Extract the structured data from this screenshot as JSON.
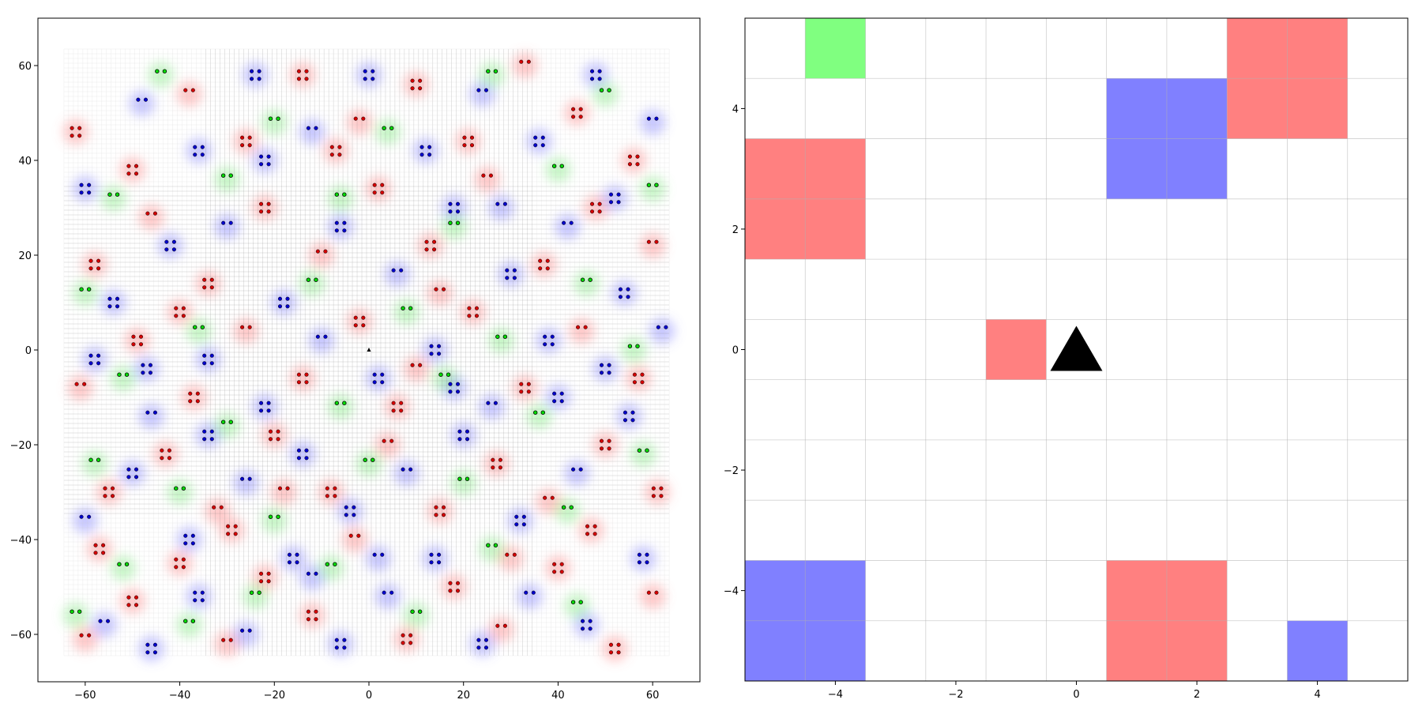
{
  "chart_data": [
    {
      "type": "scatter",
      "title": "",
      "xlabel": "",
      "ylabel": "",
      "xlim": [
        -70,
        70
      ],
      "ylim": [
        -70,
        70
      ],
      "data_extent": [
        -64.5,
        63.5
      ],
      "xticks": [
        -60,
        -40,
        -20,
        0,
        20,
        40,
        60
      ],
      "yticks": [
        -60,
        -40,
        -20,
        0,
        20,
        40,
        60
      ],
      "tick_labels_x": [
        "−60",
        "−40",
        "−20",
        "0",
        "20",
        "40",
        "60"
      ],
      "tick_labels_y": [
        "−60",
        "−40",
        "−20",
        "0",
        "20",
        "40",
        "60"
      ],
      "grid": true,
      "background": "density heatmap (red / green / blue) under a fine cell grid",
      "agent_marker": {
        "x": 0,
        "y": 0,
        "shape": "triangle",
        "color": "#000000"
      },
      "series": [
        {
          "color": "#d40000",
          "clusters": [
            [
              -60,
              -61
            ],
            [
              -50,
              -53
            ],
            [
              -40,
              -45
            ],
            [
              -30,
              -62
            ],
            [
              -22,
              -48
            ],
            [
              -12,
              -56
            ],
            [
              -3,
              -40
            ],
            [
              8,
              -61
            ],
            [
              18,
              -50
            ],
            [
              28,
              -59
            ],
            [
              40,
              -46
            ],
            [
              52,
              -63
            ],
            [
              60,
              -52
            ],
            [
              -55,
              -30
            ],
            [
              -43,
              -22
            ],
            [
              -32,
              -34
            ],
            [
              -20,
              -18
            ],
            [
              -8,
              -30
            ],
            [
              4,
              -20
            ],
            [
              15,
              -34
            ],
            [
              27,
              -24
            ],
            [
              38,
              -32
            ],
            [
              50,
              -20
            ],
            [
              61,
              -30
            ],
            [
              -61,
              -8
            ],
            [
              -49,
              2
            ],
            [
              -37,
              -10
            ],
            [
              -26,
              4
            ],
            [
              -14,
              -6
            ],
            [
              -2,
              6
            ],
            [
              10,
              -4
            ],
            [
              22,
              8
            ],
            [
              33,
              -8
            ],
            [
              45,
              4
            ],
            [
              57,
              -6
            ],
            [
              -58,
              18
            ],
            [
              -46,
              28
            ],
            [
              -34,
              14
            ],
            [
              -22,
              30
            ],
            [
              -10,
              20
            ],
            [
              2,
              34
            ],
            [
              13,
              22
            ],
            [
              25,
              36
            ],
            [
              37,
              18
            ],
            [
              48,
              30
            ],
            [
              60,
              22
            ],
            [
              -62,
              46
            ],
            [
              -50,
              38
            ],
            [
              -38,
              54
            ],
            [
              -26,
              44
            ],
            [
              -14,
              58
            ],
            [
              -2,
              48
            ],
            [
              10,
              56
            ],
            [
              21,
              44
            ],
            [
              33,
              60
            ],
            [
              44,
              50
            ],
            [
              56,
              40
            ],
            [
              -18,
              -30
            ],
            [
              6,
              -12
            ],
            [
              -40,
              8
            ],
            [
              30,
              -44
            ],
            [
              47,
              -38
            ],
            [
              -57,
              -42
            ],
            [
              15,
              12
            ],
            [
              -7,
              42
            ],
            [
              -29,
              -38
            ]
          ]
        },
        {
          "color": "#0000cc",
          "clusters": [
            [
              -56,
              -58
            ],
            [
              -46,
              -63
            ],
            [
              -36,
              -52
            ],
            [
              -26,
              -60
            ],
            [
              -16,
              -44
            ],
            [
              -6,
              -62
            ],
            [
              4,
              -52
            ],
            [
              14,
              -44
            ],
            [
              24,
              -62
            ],
            [
              34,
              -52
            ],
            [
              46,
              -58
            ],
            [
              58,
              -44
            ],
            [
              -60,
              -36
            ],
            [
              -50,
              -26
            ],
            [
              -38,
              -40
            ],
            [
              -26,
              -28
            ],
            [
              -14,
              -22
            ],
            [
              -4,
              -34
            ],
            [
              8,
              -26
            ],
            [
              20,
              -18
            ],
            [
              32,
              -36
            ],
            [
              44,
              -26
            ],
            [
              55,
              -14
            ],
            [
              -58,
              -2
            ],
            [
              -46,
              -14
            ],
            [
              -34,
              -2
            ],
            [
              -22,
              -12
            ],
            [
              -10,
              2
            ],
            [
              2,
              -6
            ],
            [
              14,
              0
            ],
            [
              26,
              -12
            ],
            [
              38,
              2
            ],
            [
              50,
              -4
            ],
            [
              62,
              4
            ],
            [
              -54,
              10
            ],
            [
              -42,
              22
            ],
            [
              -30,
              26
            ],
            [
              -18,
              10
            ],
            [
              -6,
              26
            ],
            [
              6,
              16
            ],
            [
              18,
              30
            ],
            [
              30,
              16
            ],
            [
              42,
              26
            ],
            [
              54,
              12
            ],
            [
              -60,
              34
            ],
            [
              -48,
              52
            ],
            [
              -36,
              42
            ],
            [
              -24,
              58
            ],
            [
              -12,
              46
            ],
            [
              0,
              58
            ],
            [
              12,
              42
            ],
            [
              24,
              54
            ],
            [
              36,
              44
            ],
            [
              48,
              58
            ],
            [
              60,
              48
            ],
            [
              -34,
              -18
            ],
            [
              18,
              -8
            ],
            [
              -12,
              -48
            ],
            [
              40,
              -10
            ],
            [
              -47,
              -4
            ],
            [
              28,
              30
            ],
            [
              -22,
              40
            ],
            [
              52,
              32
            ],
            [
              2,
              -44
            ]
          ]
        },
        {
          "color": "#00dd00",
          "clusters": [
            [
              -62,
              -56
            ],
            [
              -52,
              -46
            ],
            [
              -38,
              -58
            ],
            [
              -24,
              -52
            ],
            [
              -8,
              -46
            ],
            [
              10,
              -56
            ],
            [
              26,
              -42
            ],
            [
              44,
              -54
            ],
            [
              -58,
              -24
            ],
            [
              -40,
              -30
            ],
            [
              -20,
              -36
            ],
            [
              0,
              -24
            ],
            [
              20,
              -28
            ],
            [
              42,
              -34
            ],
            [
              58,
              -22
            ],
            [
              -52,
              -6
            ],
            [
              -30,
              -16
            ],
            [
              -6,
              -12
            ],
            [
              16,
              -6
            ],
            [
              36,
              -14
            ],
            [
              56,
              0
            ],
            [
              -60,
              12
            ],
            [
              -36,
              4
            ],
            [
              -12,
              14
            ],
            [
              8,
              8
            ],
            [
              28,
              2
            ],
            [
              46,
              14
            ],
            [
              -54,
              32
            ],
            [
              -30,
              36
            ],
            [
              -6,
              32
            ],
            [
              18,
              26
            ],
            [
              40,
              38
            ],
            [
              60,
              34
            ],
            [
              -44,
              58
            ],
            [
              -20,
              48
            ],
            [
              4,
              46
            ],
            [
              26,
              58
            ],
            [
              50,
              54
            ]
          ]
        }
      ]
    },
    {
      "type": "heatmap",
      "title": "",
      "xlabel": "",
      "ylabel": "",
      "xlim": [
        -5.5,
        5.5
      ],
      "ylim": [
        -5.5,
        5.5
      ],
      "xticks": [
        -4,
        -2,
        0,
        2,
        4
      ],
      "yticks": [
        -4,
        -2,
        0,
        2,
        4
      ],
      "tick_labels_x": [
        "−4",
        "−2",
        "0",
        "2",
        "4"
      ],
      "tick_labels_y": [
        "−4",
        "−2",
        "0",
        "2",
        "4"
      ],
      "grid": true,
      "cells": [
        {
          "x0": -4.5,
          "x1": -3.5,
          "y0": 4.5,
          "y1": 5.5,
          "color": "#80ff80"
        },
        {
          "x0": 2.5,
          "x1": 4.5,
          "y0": 3.5,
          "y1": 5.5,
          "color": "#ff8080"
        },
        {
          "x0": 0.5,
          "x1": 2.5,
          "y0": 2.5,
          "y1": 4.5,
          "color": "#8080ff"
        },
        {
          "x0": -5.5,
          "x1": -3.5,
          "y0": 1.5,
          "y1": 3.5,
          "color": "#ff8080"
        },
        {
          "x0": -1.5,
          "x1": -0.5,
          "y0": -0.5,
          "y1": 0.5,
          "color": "#ff8080"
        },
        {
          "x0": -5.5,
          "x1": -3.5,
          "y0": -5.5,
          "y1": -3.5,
          "color": "#8080ff"
        },
        {
          "x0": 0.5,
          "x1": 2.5,
          "y0": -5.5,
          "y1": -3.5,
          "color": "#ff8080"
        },
        {
          "x0": 3.5,
          "x1": 4.5,
          "y0": -5.5,
          "y1": -4.5,
          "color": "#8080ff"
        }
      ],
      "agent_marker": {
        "x": 0,
        "y": 0,
        "shape": "triangle",
        "color": "#000000"
      }
    }
  ]
}
